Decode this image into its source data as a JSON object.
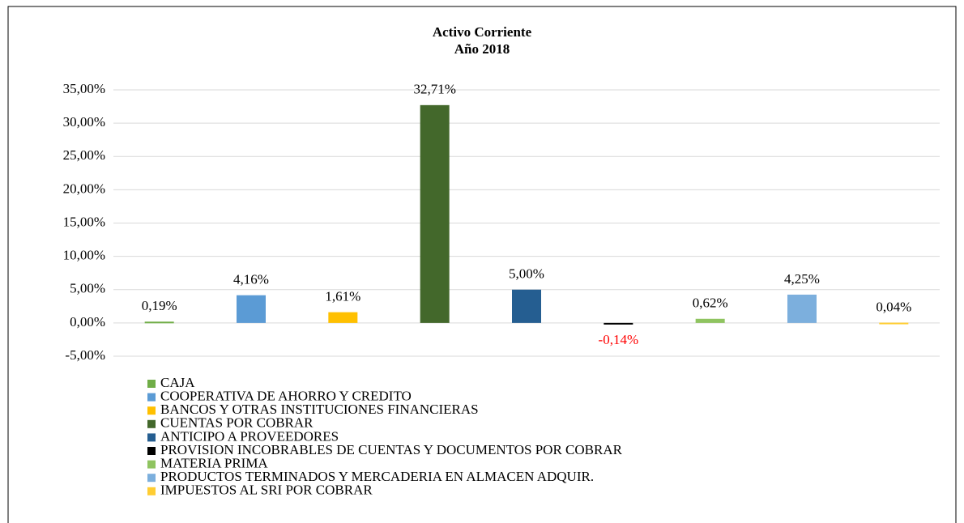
{
  "chart_data": {
    "type": "bar",
    "title": "Activo Corriente",
    "subtitle": "Año 2018",
    "series": [
      {
        "name": "CAJA",
        "color": "#70ad47",
        "values": [
          0.19
        ],
        "value_labels": [
          "0,19%"
        ]
      },
      {
        "name": "COOPERATIVA DE AHORRO Y CREDITO",
        "color": "#5b9bd5",
        "values": [
          4.16
        ],
        "value_labels": [
          "4,16%"
        ]
      },
      {
        "name": "BANCOS Y OTRAS INSTITUCIONES FINANCIERAS",
        "color": "#ffc000",
        "values": [
          1.61
        ],
        "value_labels": [
          "1,61%"
        ]
      },
      {
        "name": "CUENTAS POR COBRAR",
        "color": "#43682b",
        "values": [
          32.71
        ],
        "value_labels": [
          "32,71%"
        ]
      },
      {
        "name": "ANTICIPO A PROVEEDORES",
        "color": "#255e91",
        "values": [
          5.0
        ],
        "value_labels": [
          "5,00%"
        ]
      },
      {
        "name": "PROVISION INCOBRABLES DE CUENTAS Y DOCUMENTOS POR COBRAR",
        "color": "#000000",
        "values": [
          -0.14
        ],
        "value_labels": [
          "-0,14%"
        ],
        "label_color": "#ff0000"
      },
      {
        "name": "MATERIA PRIMA",
        "color": "#8fc460",
        "values": [
          0.62
        ],
        "value_labels": [
          "0,62%"
        ]
      },
      {
        "name": "PRODUCTOS TERMINADOS Y MERCADERIA EN ALMACEN ADQUIR.",
        "color": "#7cafdd",
        "values": [
          4.25
        ],
        "value_labels": [
          "4,25%"
        ]
      },
      {
        "name": "IMPUESTOS AL SRI POR COBRAR",
        "color": "#ffcd33",
        "values": [
          0.04
        ],
        "value_labels": [
          "0,04%"
        ]
      }
    ],
    "ylim": [
      -5,
      35
    ],
    "yticks": [
      {
        "value": -5,
        "label": "-5,00%"
      },
      {
        "value": 0,
        "label": "0,00%"
      },
      {
        "value": 5,
        "label": "5,00%"
      },
      {
        "value": 10,
        "label": "10,00%"
      },
      {
        "value": 15,
        "label": "15,00%"
      },
      {
        "value": 20,
        "label": "20,00%"
      },
      {
        "value": 25,
        "label": "25,00%"
      },
      {
        "value": 30,
        "label": "30,00%"
      },
      {
        "value": 35,
        "label": "35,00%"
      }
    ],
    "grid": true,
    "legend": "bottom"
  }
}
